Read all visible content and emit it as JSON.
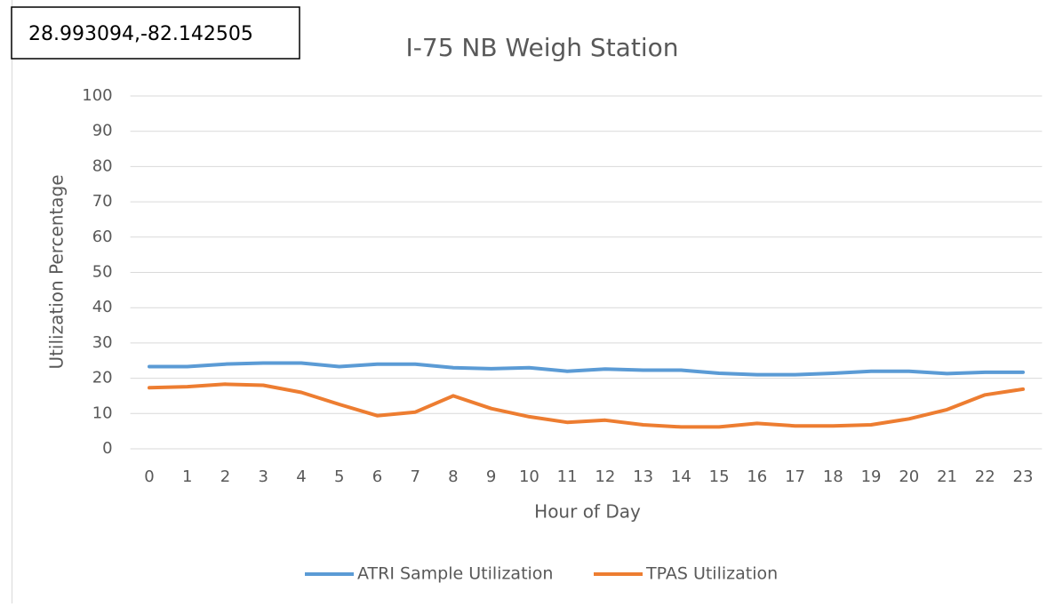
{
  "chart_data": {
    "type": "line",
    "title": "I-75 NB Weigh Station",
    "annotation": "28.993094,-82.142505",
    "x_label": "Hour of Day",
    "y_label": "Utilization Percentage",
    "categories": [
      "0",
      "1",
      "2",
      "3",
      "4",
      "5",
      "6",
      "7",
      "8",
      "9",
      "10",
      "11",
      "12",
      "13",
      "14",
      "15",
      "16",
      "17",
      "18",
      "19",
      "20",
      "21",
      "22",
      "23"
    ],
    "series": [
      {
        "name": "ATRI Sample Utilization",
        "color": "#5b9bd5",
        "values": [
          23.3,
          23.3,
          24,
          24.3,
          24.3,
          23.3,
          24,
          24,
          23,
          22.7,
          23,
          22,
          22.6,
          22.3,
          22.3,
          21.4,
          21,
          21,
          21.4,
          22,
          22,
          21.3,
          21.7,
          21.7
        ]
      },
      {
        "name": "TPAS Utilization",
        "color": "#ed7d31",
        "values": [
          17.3,
          17.6,
          18.3,
          18,
          16,
          12.6,
          9.4,
          10.4,
          15,
          11.4,
          9.1,
          7.5,
          8.1,
          6.8,
          6.2,
          6.2,
          7.2,
          6.5,
          6.5,
          6.8,
          8.5,
          11.1,
          15.3,
          16.9
        ]
      }
    ],
    "ylim": [
      0,
      100
    ],
    "yticks": [
      0,
      10,
      20,
      30,
      40,
      50,
      60,
      70,
      80,
      90,
      100
    ],
    "grid": true,
    "legend": "bottom"
  }
}
